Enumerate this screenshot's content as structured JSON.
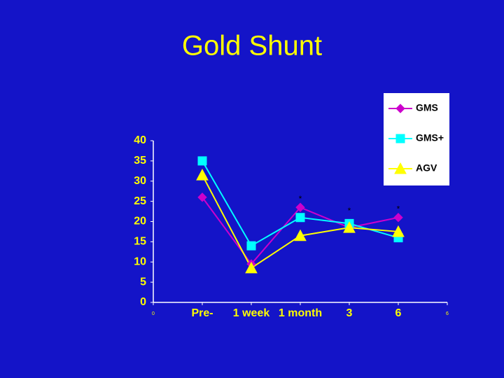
{
  "chart_data": {
    "type": "line",
    "title": "Gold Shunt",
    "xlim": [
      0,
      6
    ],
    "xticks": [
      0,
      {
        "value": 1,
        "label": "Pre-"
      },
      {
        "value": 2,
        "label": "1 week"
      },
      {
        "value": 3,
        "label": "1 month"
      },
      {
        "value": 4,
        "label": "3"
      },
      {
        "value": 5,
        "label": "6"
      },
      6
    ],
    "x": [
      1,
      2,
      3,
      4,
      5
    ],
    "ylim": [
      0,
      40
    ],
    "yticks": [
      0,
      5,
      10,
      15,
      20,
      25,
      30,
      35,
      40
    ],
    "series": [
      {
        "name": "GMS",
        "color": "#cc00cc",
        "marker": "diamond",
        "values": [
          26,
          9.5,
          23.5,
          18.5,
          21
        ]
      },
      {
        "name": "GMS+",
        "color": "#00ffff",
        "marker": "square",
        "values": [
          35,
          14,
          21,
          19.5,
          16
        ]
      },
      {
        "name": "AGV",
        "color": "#ffff00",
        "marker": "triangle",
        "values": [
          31.5,
          8.5,
          16.5,
          18.5,
          17.5
        ]
      }
    ],
    "annotations": [
      {
        "text": "*",
        "x": 3,
        "y": 25.5
      },
      {
        "text": "*",
        "x": 4,
        "y": 22.5
      },
      {
        "text": "*",
        "x": 5,
        "y": 23
      }
    ],
    "legend": "top-right"
  }
}
